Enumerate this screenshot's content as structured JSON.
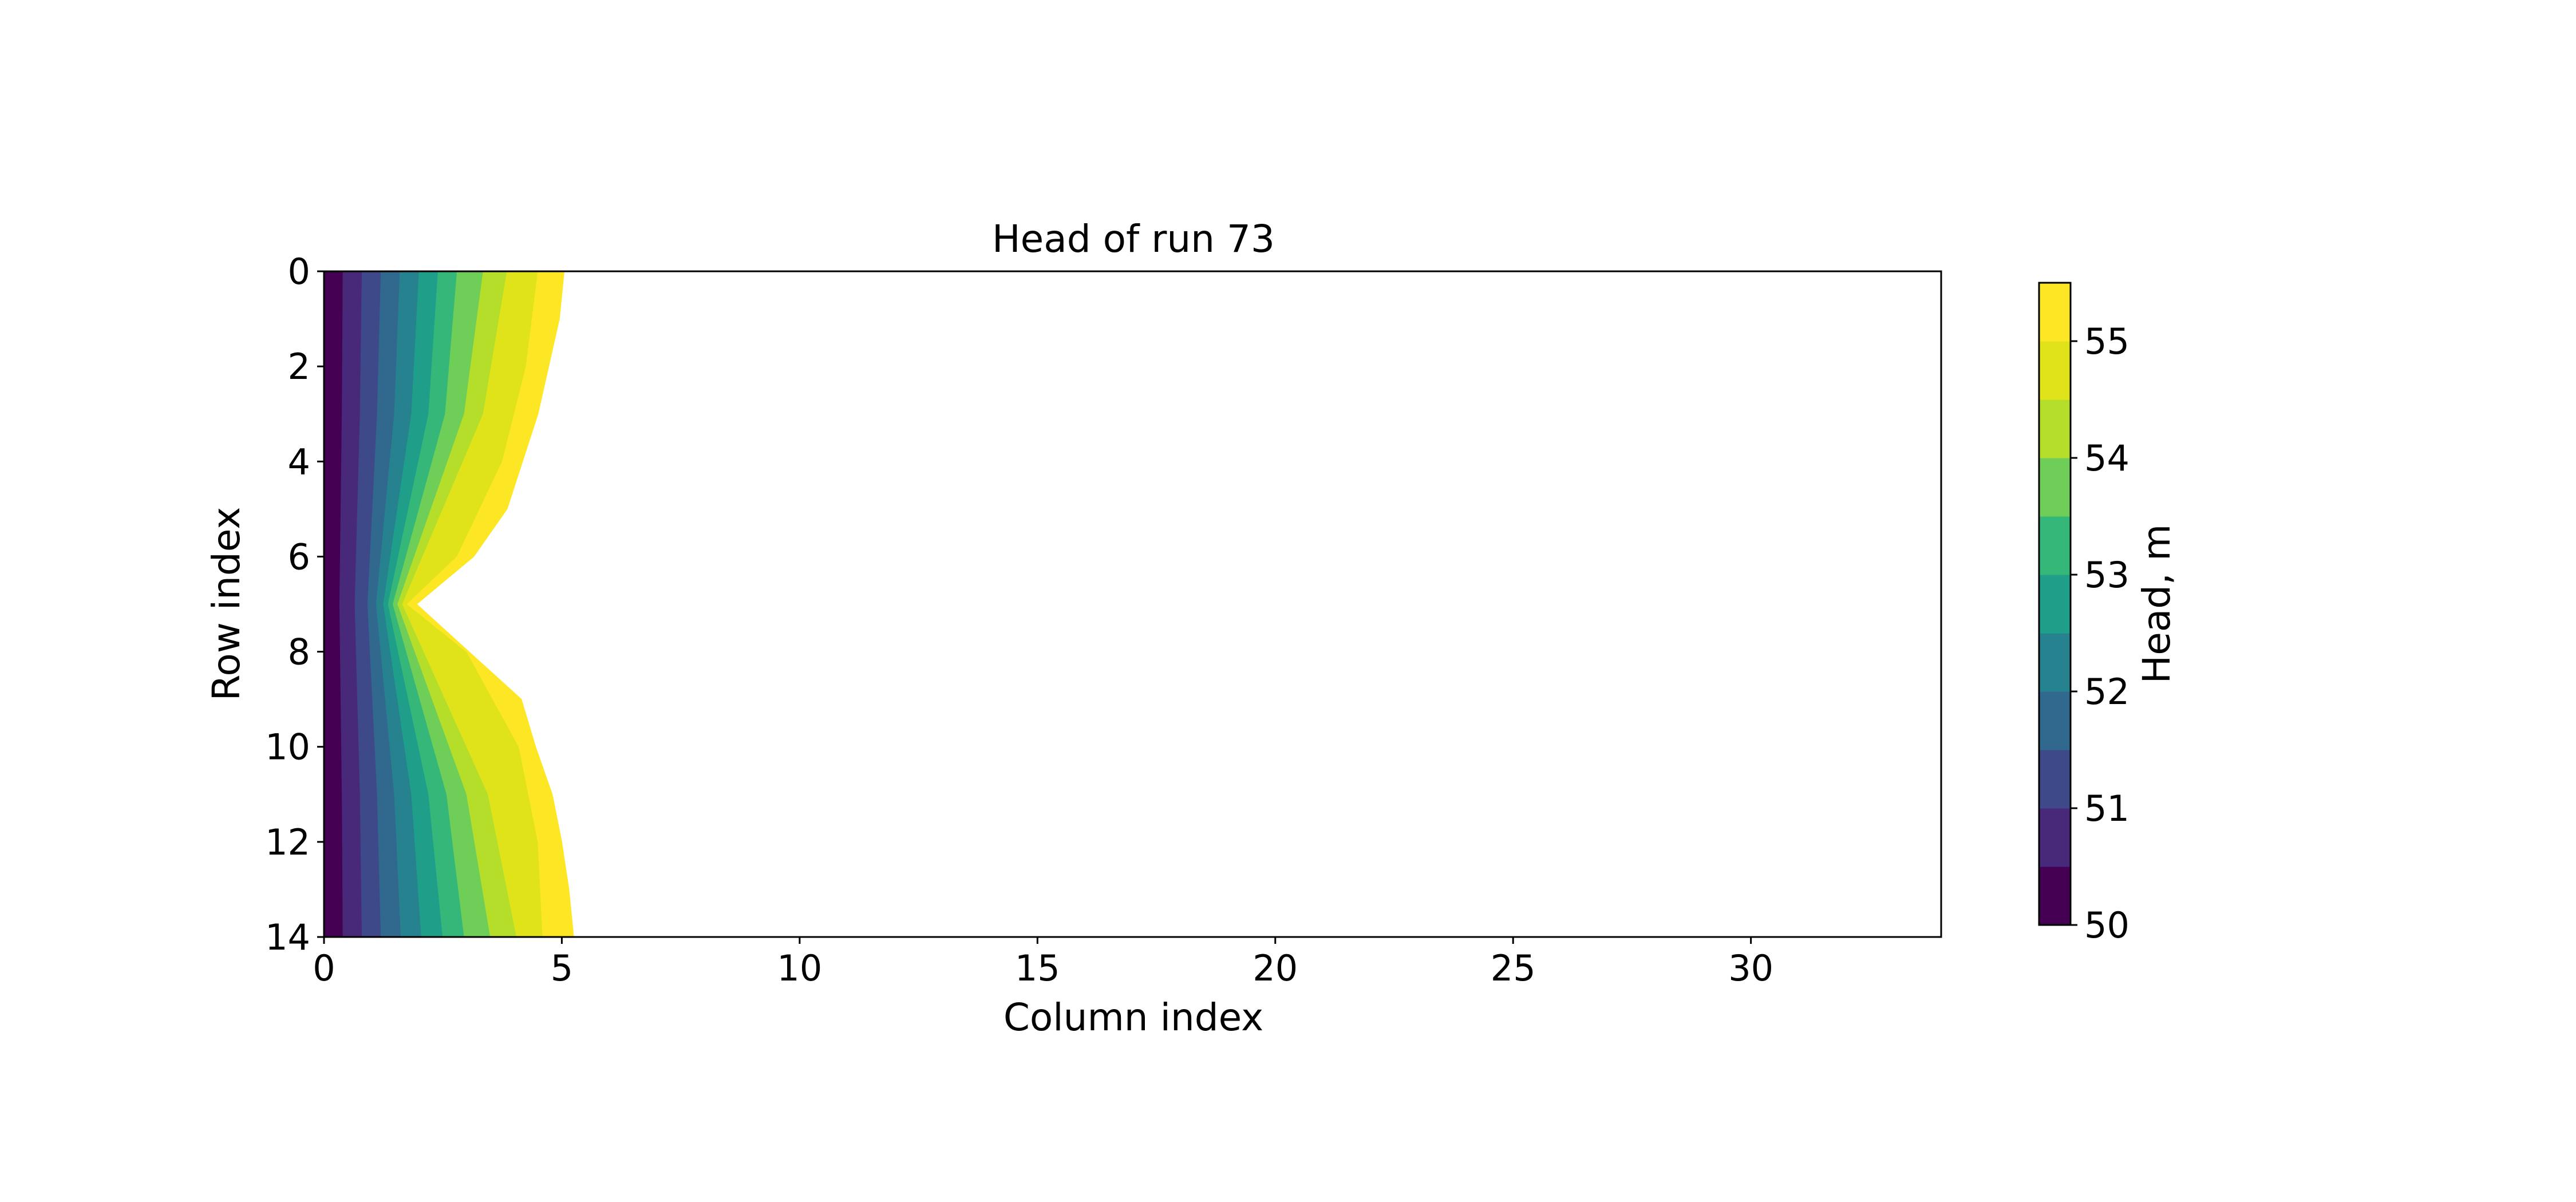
{
  "chart_data": {
    "type": "contour",
    "title": "Head of run 73",
    "xlabel": "Column index",
    "ylabel": "Row index",
    "xlim": [
      0,
      34
    ],
    "ylim": [
      14,
      0
    ],
    "y_inverted": true,
    "xticks": [
      0,
      5,
      10,
      15,
      20,
      25,
      30
    ],
    "yticks": [
      0,
      2,
      4,
      6,
      8,
      10,
      12,
      14
    ],
    "grid": false,
    "colorbar": {
      "label": "Head, m",
      "min": 50,
      "max": 55.5,
      "ticks": [
        50,
        51,
        52,
        53,
        54,
        55
      ],
      "levels": [
        50.0,
        50.5,
        51.0,
        51.5,
        52.0,
        52.5,
        53.0,
        53.5,
        54.0,
        54.5,
        55.0,
        55.5
      ],
      "colors": [
        "#440154",
        "#482878",
        "#3e4989",
        "#31688e",
        "#26828e",
        "#1f9e89",
        "#35b779",
        "#6ece58",
        "#b5de2b",
        "#e0e31a",
        "#fde725"
      ],
      "colormap": "viridis"
    },
    "series": [
      {
        "level": 50.5,
        "rows": [
          0,
          3,
          7,
          11,
          14
        ],
        "columns": [
          0.4,
          0.38,
          0.33,
          0.38,
          0.4
        ]
      },
      {
        "level": 51.0,
        "rows": [
          0,
          3,
          7,
          11,
          14
        ],
        "columns": [
          0.8,
          0.76,
          0.65,
          0.76,
          0.8
        ]
      },
      {
        "level": 51.5,
        "rows": [
          0,
          3,
          7,
          11,
          14
        ],
        "columns": [
          1.2,
          1.12,
          0.92,
          1.12,
          1.2
        ]
      },
      {
        "level": 52.0,
        "rows": [
          0,
          3,
          7,
          11,
          14
        ],
        "columns": [
          1.6,
          1.48,
          1.1,
          1.48,
          1.62
        ]
      },
      {
        "level": 52.5,
        "rows": [
          0,
          3,
          7,
          11,
          14
        ],
        "columns": [
          2.0,
          1.84,
          1.25,
          1.84,
          2.05
        ]
      },
      {
        "level": 53.0,
        "rows": [
          0,
          3,
          7,
          11,
          14
        ],
        "columns": [
          2.4,
          2.2,
          1.35,
          2.2,
          2.5
        ]
      },
      {
        "level": 53.5,
        "rows": [
          0,
          3,
          7,
          11,
          14
        ],
        "columns": [
          2.8,
          2.55,
          1.45,
          2.58,
          2.95
        ]
      },
      {
        "level": 54.0,
        "rows": [
          0,
          3,
          7,
          11,
          14
        ],
        "columns": [
          3.35,
          2.95,
          1.55,
          3.0,
          3.5
        ]
      },
      {
        "level": 54.5,
        "rows": [
          0,
          3,
          7,
          11,
          14
        ],
        "columns": [
          3.85,
          3.35,
          1.65,
          3.45,
          4.05
        ]
      },
      {
        "level": 55.0,
        "rows": [
          0,
          2,
          4,
          6,
          7,
          8,
          10,
          12,
          14
        ],
        "columns": [
          4.5,
          4.25,
          3.75,
          2.8,
          1.75,
          3.0,
          4.1,
          4.5,
          4.6
        ]
      },
      {
        "level": 55.5,
        "rows": [
          0,
          1,
          3,
          5,
          6,
          7,
          8,
          9,
          10,
          11,
          12,
          13,
          14
        ],
        "columns": [
          5.05,
          4.95,
          4.5,
          3.85,
          3.15,
          1.95,
          3.05,
          4.15,
          4.45,
          4.8,
          5.0,
          5.15,
          5.25
        ]
      }
    ]
  }
}
